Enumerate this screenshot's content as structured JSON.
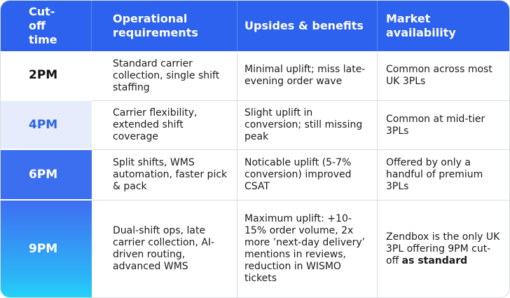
{
  "table": {
    "header": [
      "Cut-off time",
      "Operational requirements",
      "Upsides & benefits",
      "Market availability"
    ],
    "rows": [
      [
        "2PM",
        "Standard carrier collection, single shift staffing",
        "Minimal uplift; miss late-evening order wave",
        "Common across most UK 3PLs"
      ],
      [
        "4PM",
        "Carrier flexibility, extended shift coverage",
        "Slight uplift in conversion; still missing peak",
        "Common at mid-tier 3PLs"
      ],
      [
        "6PM",
        "Split shifts, WMS automation, faster pick & pack",
        "Noticable uplift (5-7% conversion) improved CSAT",
        "Offered by only a handful of premium 3PLs"
      ],
      [
        "9PM",
        "Dual-shift ops, late carrier collection, AI-driven routing, advanced WMS",
        "Maximum uplift: +10-15% order volume, 2x more ’next-day delivery’ mentions in reviews, reduction in WISMO tickets",
        [
          "Zendbox is the only UK 3PL offering 9PM cut-off",
          "as standard"
        ]
      ]
    ]
  }
}
